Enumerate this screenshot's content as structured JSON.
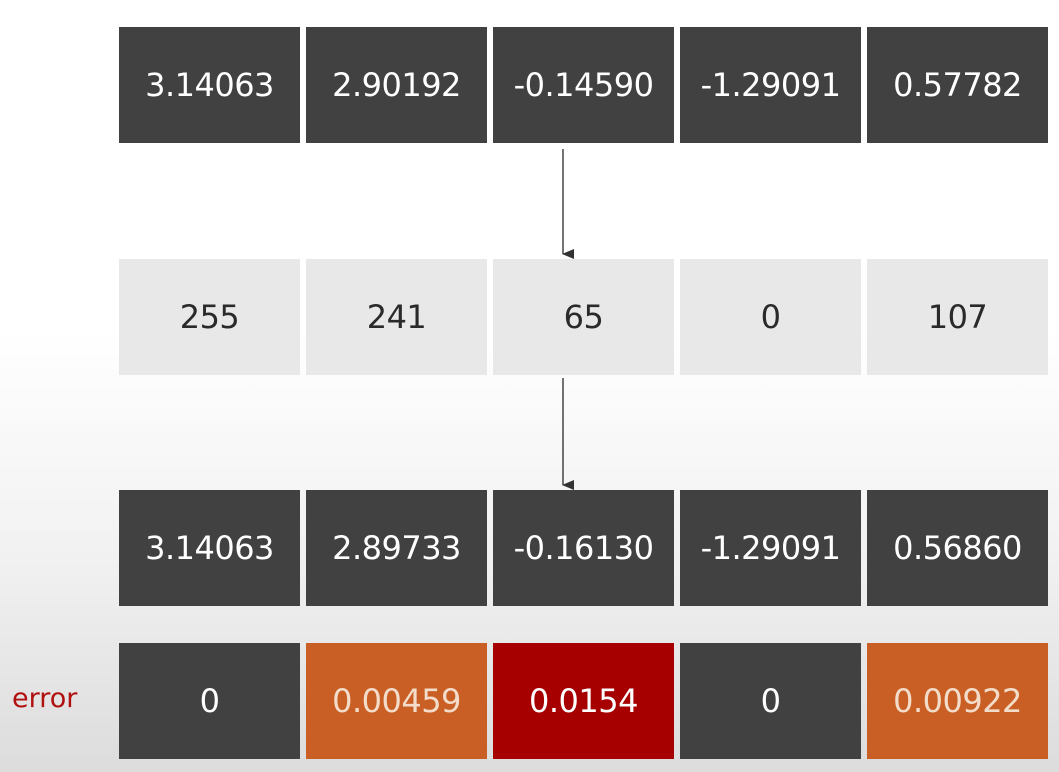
{
  "rows": {
    "original": [
      "3.14063",
      "2.90192",
      "-0.14590",
      "-1.29091",
      "0.57782"
    ],
    "quantized": [
      "255",
      "241",
      "65",
      "0",
      "107"
    ],
    "dequantized": [
      "3.14063",
      "2.89733",
      "-0.16130",
      "-1.29091",
      "0.56860"
    ],
    "error": [
      "0",
      "0.00459",
      "0.0154",
      "0",
      "0.00922"
    ]
  },
  "error_label": "error",
  "colors": {
    "dark_cell": "#414141",
    "light_cell": "#e8e8e8",
    "error_orange": "#c95f24",
    "error_red": "#a70000",
    "label_red": "#b01010"
  }
}
